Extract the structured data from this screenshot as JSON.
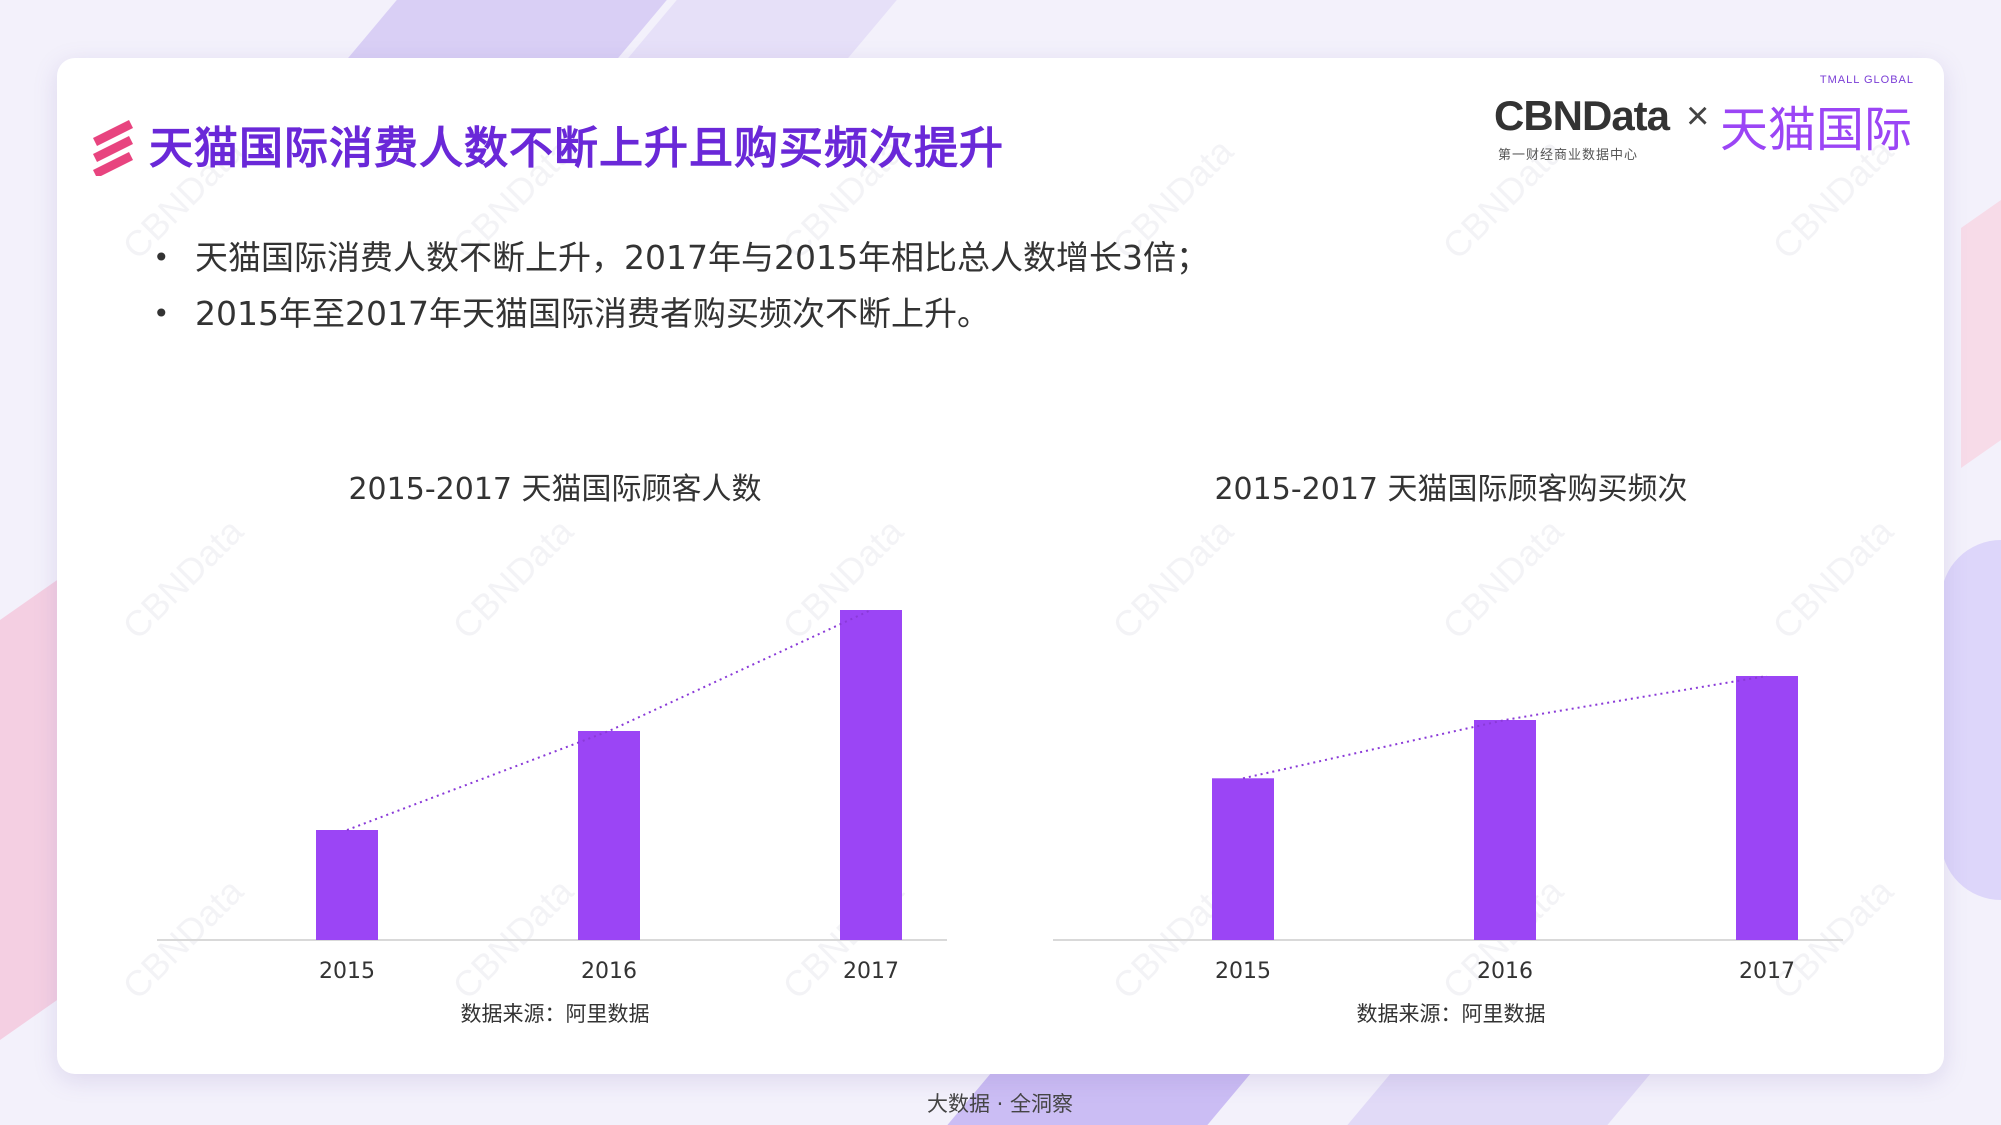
{
  "slide": {
    "title": "天猫国际消费人数不断上升且购买频次提升",
    "bullets": [
      "天猫国际消费人数不断上升，2017年与2015年相比总人数增长3倍；",
      "2015年至2017年天猫国际消费者购买频次不断上升。"
    ],
    "footer": "大数据 · 全洞察",
    "watermark": "CBNData"
  },
  "logo": {
    "cbn": "CBNData",
    "cbn_sub": "第一财经商业数据中心",
    "times": "×",
    "tmall": "天猫国际",
    "tmall_en": "TMALL GLOBAL"
  },
  "colors": {
    "title": "#6a28d8",
    "bar": "#9b45f5",
    "accent_pink": "#e8447f"
  },
  "chart_data": [
    {
      "type": "bar",
      "title": "2015-2017 天猫国际顾客人数",
      "categories": [
        "2015",
        "2016",
        "2017"
      ],
      "values": [
        1,
        1.9,
        3
      ],
      "ylim": [
        0,
        3
      ],
      "trendline": true,
      "source": "数据来源：阿里数据"
    },
    {
      "type": "bar",
      "title": "2015-2017 天猫国际顾客购买频次",
      "categories": [
        "2015",
        "2016",
        "2017"
      ],
      "values": [
        1.47,
        2.0,
        2.4
      ],
      "ylim": [
        0,
        3
      ],
      "trendline": true,
      "source": "数据来源：阿里数据"
    }
  ]
}
